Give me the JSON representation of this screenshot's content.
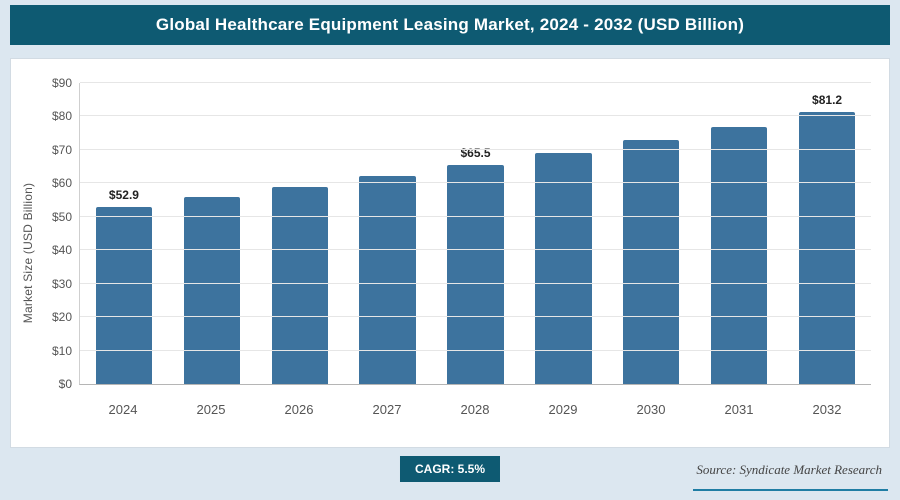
{
  "header": {
    "title": "Global Healthcare Equipment Leasing Market, 2024 - 2032 (USD Billion)"
  },
  "chart_data": {
    "type": "bar",
    "title": "Global Healthcare Equipment Leasing Market, 2024 - 2032 (USD Billion)",
    "categories": [
      "2024",
      "2025",
      "2026",
      "2027",
      "2028",
      "2029",
      "2030",
      "2031",
      "2032"
    ],
    "values": [
      52.9,
      55.8,
      58.9,
      62.1,
      65.5,
      69.1,
      72.9,
      76.9,
      81.2
    ],
    "bar_labels": [
      "$52.9",
      "",
      "",
      "",
      "$65.5",
      "",
      "",
      "",
      "$81.2"
    ],
    "xlabel": "",
    "ylabel": "Market Size (USD Billion)",
    "ylim": [
      0,
      90
    ],
    "ytick_step": 10,
    "ytick_prefix": "$",
    "grid": true,
    "legend": "none",
    "bar_color": "#3d739e"
  },
  "footer": {
    "cagr_label": "CAGR: 5.5%",
    "source": "Source: Syndicate Market Research"
  },
  "colors": {
    "banner_bg": "#0e5a72",
    "bar": "#3d739e",
    "page_background": "#dce7f0"
  }
}
